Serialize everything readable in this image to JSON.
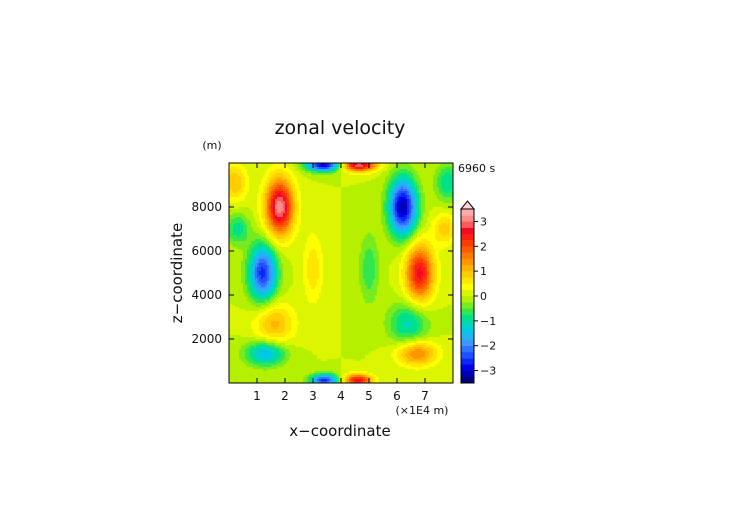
{
  "chart_data": {
    "type": "heatmap",
    "title": "zonal velocity",
    "xlabel": "x−coordinate",
    "ylabel": "z−coordinate",
    "y_unit": "(m)",
    "x_unit": "(×1E4 m)",
    "time_label": "6960 s",
    "xlim": [
      0,
      8
    ],
    "ylim": [
      0,
      10000
    ],
    "x_ticks": [
      1,
      2,
      3,
      4,
      5,
      6,
      7
    ],
    "x_tick_labels": [
      "1",
      "2",
      "3",
      "4",
      "5",
      "6",
      "7"
    ],
    "y_ticks": [
      2000,
      4000,
      6000,
      8000
    ],
    "y_tick_labels": [
      "2000",
      "4000",
      "6000",
      "8000"
    ],
    "colorbar": {
      "levels": [
        -3.5,
        -3.25,
        -3.0,
        -2.75,
        -2.5,
        -2.25,
        -2.0,
        -1.75,
        -1.5,
        -1.25,
        -1.0,
        -0.75,
        -0.5,
        -0.25,
        0.0,
        0.25,
        0.5,
        0.75,
        1.0,
        1.25,
        1.5,
        1.75,
        2.0,
        2.25,
        2.5,
        2.75,
        3.0,
        3.25,
        3.5
      ],
      "tick_values": [
        -3,
        -2,
        -1,
        0,
        1,
        2,
        3
      ],
      "tick_labels": [
        "−3",
        "−2",
        "−1",
        "0",
        "1",
        "2",
        "3"
      ],
      "colors": [
        "#00007a",
        "#0000b4",
        "#0000e6",
        "#0a28f5",
        "#1e50ff",
        "#2d73ff",
        "#3c96ff",
        "#23b4f0",
        "#00c8e6",
        "#00d7b9",
        "#00e18c",
        "#32e650",
        "#78eb1e",
        "#b4f000",
        "#dcf500",
        "#ffff00",
        "#ffe600",
        "#ffcd00",
        "#ffb400",
        "#ff9600",
        "#ff7800",
        "#ff5a00",
        "#ff3c00",
        "#ff1e14",
        "#f00a28",
        "#ff5a5a",
        "#ff8c8c",
        "#ffaaaa"
      ],
      "overflow_color": "#ffd2d2"
    },
    "field": {
      "description_of_features": [
        {
          "x": 1.8,
          "z": 8000,
          "u": 3.2,
          "sx": 0.35,
          "sz": 900
        },
        {
          "x": 6.2,
          "z": 8000,
          "u": -3.2,
          "sx": 0.35,
          "sz": 900
        },
        {
          "x": 1.2,
          "z": 5000,
          "u": -2.6,
          "sx": 0.35,
          "sz": 900
        },
        {
          "x": 6.8,
          "z": 5000,
          "u": 2.6,
          "sx": 0.35,
          "sz": 900
        },
        {
          "x": 1.6,
          "z": 2700,
          "u": 1.1,
          "sx": 0.5,
          "sz": 700
        },
        {
          "x": 6.4,
          "z": 2700,
          "u": -1.1,
          "sx": 0.5,
          "sz": 700
        },
        {
          "x": 1.3,
          "z": 1350,
          "u": -1.6,
          "sx": 0.5,
          "sz": 400
        },
        {
          "x": 6.7,
          "z": 1350,
          "u": 1.6,
          "sx": 0.5,
          "sz": 400
        },
        {
          "x": 3.4,
          "z": 9900,
          "u": -3.0,
          "sx": 0.45,
          "sz": 200
        },
        {
          "x": 4.6,
          "z": 9900,
          "u": 3.0,
          "sx": 0.45,
          "sz": 200
        },
        {
          "x": 3.4,
          "z": 120,
          "u": -2.6,
          "sx": 0.35,
          "sz": 200
        },
        {
          "x": 4.6,
          "z": 120,
          "u": 2.6,
          "sx": 0.35,
          "sz": 200
        },
        {
          "x": 3.0,
          "z": 5200,
          "u": 0.7,
          "sx": 0.25,
          "sz": 1100
        },
        {
          "x": 5.0,
          "z": 5200,
          "u": -0.7,
          "sx": 0.25,
          "sz": 1100
        },
        {
          "x": 0.2,
          "z": 9100,
          "u": 1.0,
          "sx": 0.3,
          "sz": 600
        },
        {
          "x": 7.8,
          "z": 9100,
          "u": -1.0,
          "sx": 0.3,
          "sz": 600
        },
        {
          "x": 0.3,
          "z": 7000,
          "u": -0.9,
          "sx": 0.3,
          "sz": 500
        },
        {
          "x": 7.7,
          "z": 7000,
          "u": 0.9,
          "sx": 0.3,
          "sz": 500
        }
      ]
    }
  }
}
